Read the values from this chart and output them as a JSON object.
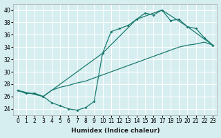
{
  "xlabel": "Humidex (Indice chaleur)",
  "ylabel": "",
  "bg_color": "#d6eef0",
  "grid_color": "#ffffff",
  "line_color": "#1a7a6e",
  "xlim": [
    -0.5,
    23.5
  ],
  "ylim": [
    23,
    41
  ],
  "yticks": [
    24,
    26,
    28,
    30,
    32,
    34,
    36,
    38,
    40
  ],
  "xticks": [
    0,
    1,
    2,
    3,
    4,
    5,
    6,
    7,
    8,
    9,
    10,
    11,
    12,
    13,
    14,
    15,
    16,
    17,
    18,
    19,
    20,
    21,
    22,
    23
  ],
  "series1_x": [
    0,
    1,
    2,
    3,
    4,
    5,
    6,
    7,
    8,
    9,
    10,
    11,
    12,
    13,
    14,
    15,
    16,
    17,
    18,
    19,
    20,
    21,
    22,
    23
  ],
  "series1_y": [
    27.0,
    26.5,
    26.5,
    26.0,
    25.0,
    24.5,
    24.0,
    23.8,
    24.2,
    25.2,
    33.0,
    36.5,
    37.0,
    37.5,
    38.5,
    39.5,
    39.2,
    40.0,
    38.3,
    38.5,
    37.3,
    37.0,
    35.5,
    34.3
  ],
  "series2_x": [
    0,
    1,
    2,
    3,
    4,
    5,
    6,
    7,
    8,
    9,
    10,
    11,
    12,
    13,
    14,
    15,
    16,
    17,
    18,
    19,
    20,
    21,
    22,
    23
  ],
  "series2_y": [
    27.0,
    26.5,
    26.5,
    26.0,
    27.0,
    27.5,
    27.8,
    28.2,
    28.5,
    29.0,
    29.5,
    30.0,
    30.5,
    31.0,
    31.5,
    32.0,
    32.5,
    33.0,
    33.5,
    34.0,
    34.3,
    34.5,
    34.8,
    34.3
  ],
  "series3_x": [
    0,
    3,
    10,
    14,
    17,
    20,
    23
  ],
  "series3_y": [
    27.0,
    26.0,
    33.0,
    38.5,
    40.0,
    37.3,
    34.3
  ]
}
